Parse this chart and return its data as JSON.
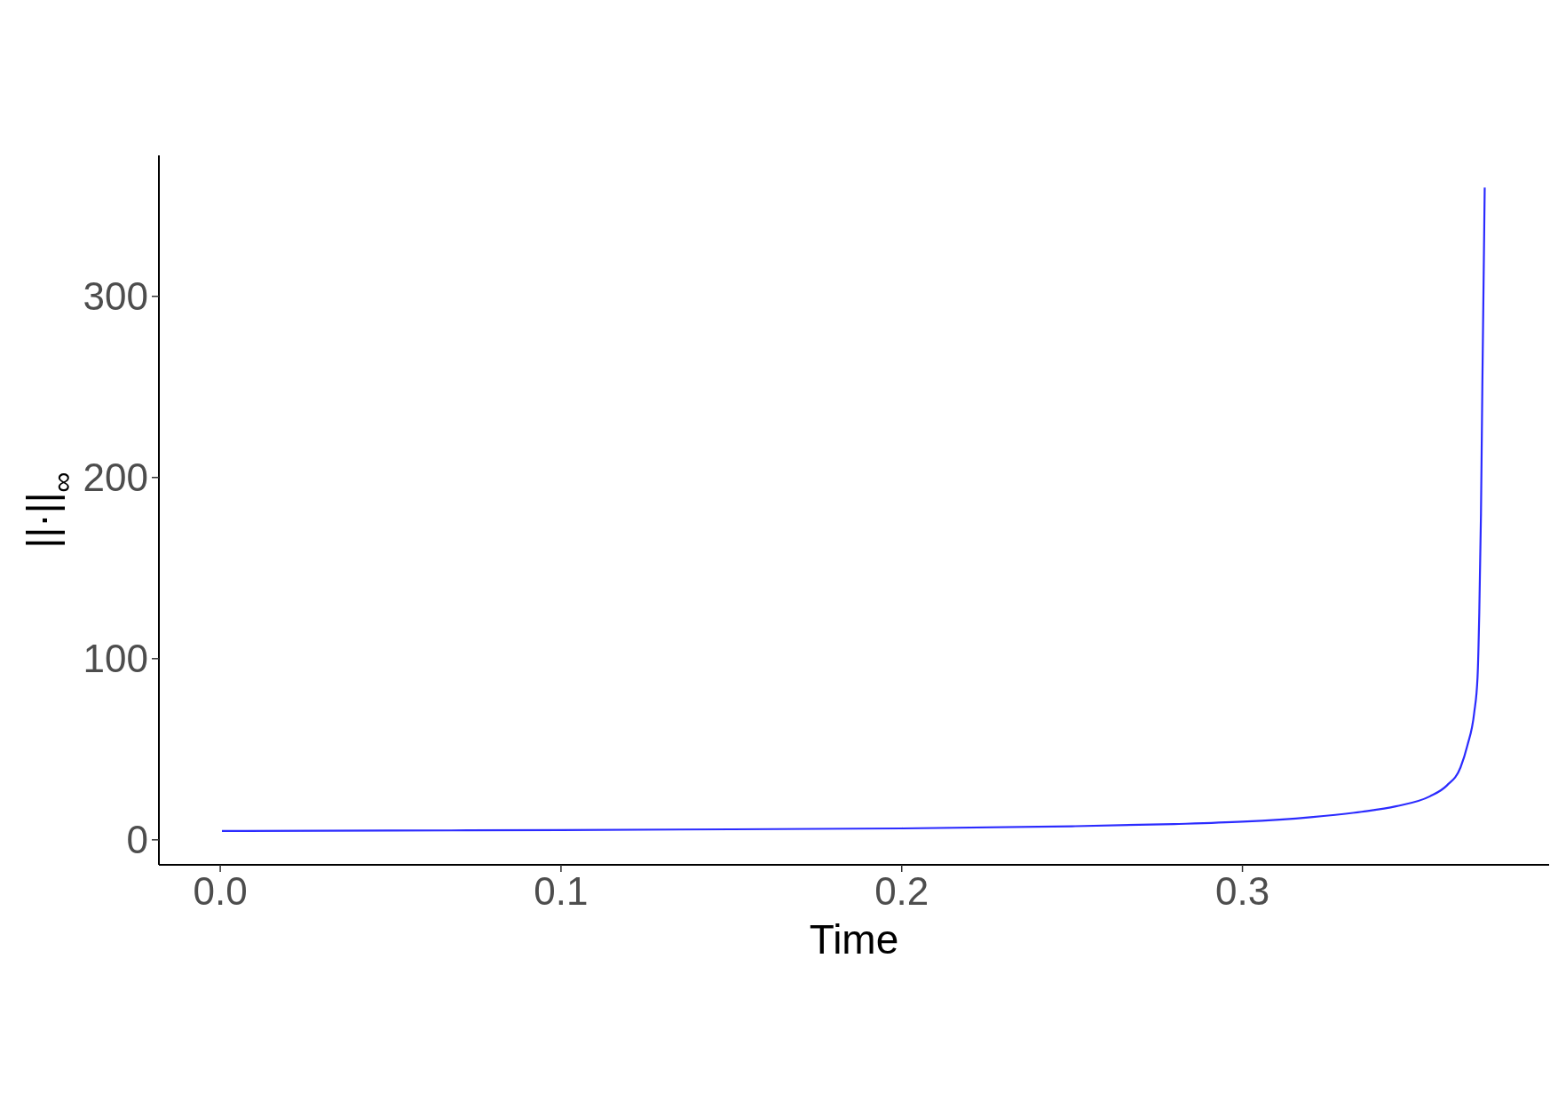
{
  "chart_data": {
    "type": "line",
    "xlabel": "Time",
    "ylabel": "||·||$_{∞}$",
    "x": [
      0.0005,
      0.05,
      0.1,
      0.15,
      0.2,
      0.25,
      0.28,
      0.3,
      0.32,
      0.335,
      0.345,
      0.355,
      0.36,
      0.364,
      0.366,
      0.368,
      0.369,
      0.3695,
      0.37,
      0.3704,
      0.3711
    ],
    "series": [
      {
        "color": "#2b2bff",
        "values": [
          4.9,
          5.1,
          5.4,
          5.8,
          6.3,
          7.5,
          8.7,
          10,
          12.5,
          15.5,
          18.5,
          24,
          30,
          40,
          52,
          70,
          90,
          125,
          180,
          250,
          360
        ]
      }
    ],
    "xlim": [
      -0.018,
      0.39
    ],
    "ylim": [
      -13.8,
      377.8
    ],
    "xticks": [
      {
        "value": 0,
        "label": "0.0"
      },
      0.1,
      0.2,
      0.3
    ],
    "yticks": [
      0,
      100,
      200,
      300
    ],
    "grid": false
  }
}
